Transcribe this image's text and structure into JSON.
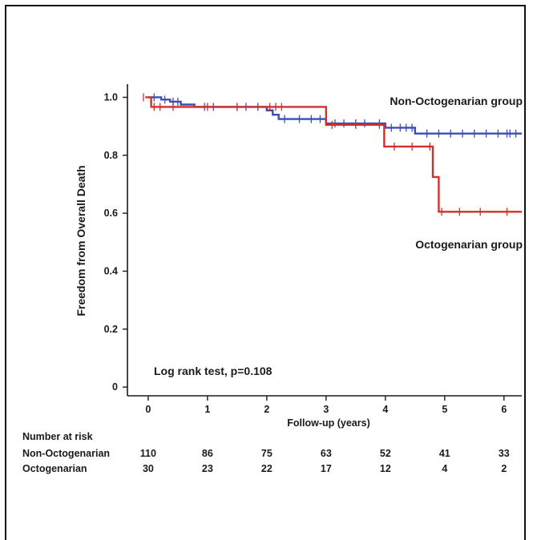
{
  "chart_data": {
    "type": "line",
    "title": "",
    "xlabel": "Follow-up (years)",
    "ylabel": "Freedom from Overall Death",
    "xlim": [
      -0.35,
      6.3
    ],
    "ylim": [
      -0.03,
      1.04
    ],
    "x_ticks": [
      0,
      1,
      2,
      3,
      4,
      5,
      6
    ],
    "x_tick_labels": [
      "0",
      "1",
      "2",
      "3",
      "4",
      "5",
      "6"
    ],
    "y_ticks": [
      0,
      0.2,
      0.4,
      0.6,
      0.8,
      1.0
    ],
    "y_tick_labels": [
      "0",
      "0.2",
      "0.4",
      "0.6",
      "0.8",
      "1.0"
    ],
    "grid": false,
    "series": [
      {
        "name": "Non-Octogenarian group",
        "color": "#3a4fb5",
        "steps": [
          [
            0,
            1.0
          ],
          [
            0.22,
            0.992
          ],
          [
            0.37,
            0.985
          ],
          [
            0.55,
            0.975
          ],
          [
            0.78,
            0.967
          ],
          [
            2.0,
            0.955
          ],
          [
            2.1,
            0.94
          ],
          [
            2.2,
            0.925
          ],
          [
            3.0,
            0.91
          ],
          [
            4.0,
            0.895
          ],
          [
            4.5,
            0.875
          ],
          [
            6.3,
            0.875
          ]
        ],
        "censors": [
          0.1,
          0.28,
          0.42,
          0.5,
          0.95,
          1.1,
          1.5,
          1.65,
          1.85,
          2.3,
          2.55,
          2.75,
          2.9,
          3.15,
          3.3,
          3.5,
          3.65,
          3.9,
          4.1,
          4.25,
          4.35,
          4.45,
          4.7,
          4.9,
          5.1,
          5.3,
          5.5,
          5.7,
          5.9,
          6.05,
          6.1,
          6.2
        ],
        "end_label": "Non-Octogenarian group"
      },
      {
        "name": "Octogenarian group",
        "color": "#d0312b",
        "steps": [
          [
            -0.05,
            1.0
          ],
          [
            0.05,
            0.967
          ],
          [
            3.0,
            0.905
          ],
          [
            3.98,
            0.83
          ],
          [
            4.8,
            0.725
          ],
          [
            4.9,
            0.605
          ],
          [
            6.3,
            0.605
          ]
        ],
        "censors": [
          -0.08,
          0.1,
          0.2,
          0.42,
          1.0,
          1.5,
          2.05,
          2.15,
          2.25,
          3.1,
          3.5,
          3.9,
          4.15,
          4.45,
          4.75,
          4.95,
          5.25,
          5.6,
          6.05
        ],
        "end_label": "Octogenarian group"
      }
    ],
    "annotation": "Log rank test, p=0.108"
  },
  "risk_table": {
    "title": "Number at risk",
    "rows": [
      {
        "label": "Non-Octogenarian",
        "values": [
          "110",
          "86",
          "75",
          "63",
          "52",
          "41",
          "33"
        ]
      },
      {
        "label": "Octogenarian",
        "values": [
          "30",
          "23",
          "22",
          "17",
          "12",
          "4",
          "2"
        ]
      }
    ]
  }
}
